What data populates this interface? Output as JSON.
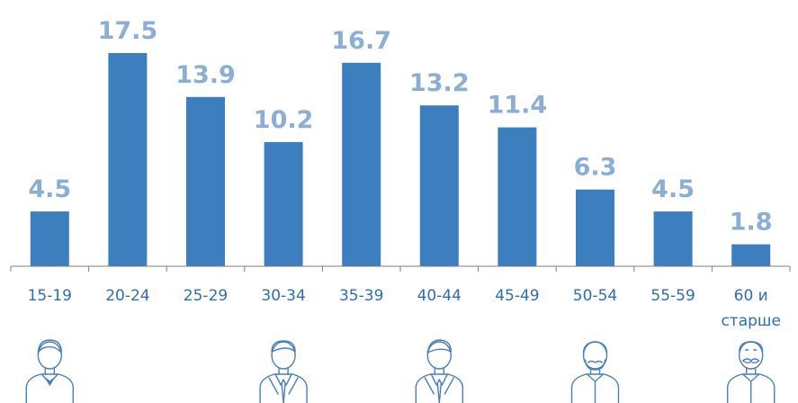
{
  "chart_data": {
    "type": "bar",
    "categories": [
      "15-19",
      "20-24",
      "25-29",
      "30-34",
      "35-39",
      "40-44",
      "45-49",
      "50-54",
      "55-59",
      "60 и старше"
    ],
    "category_lines": [
      [
        "15-19"
      ],
      [
        "20-24"
      ],
      [
        "25-29"
      ],
      [
        "30-34"
      ],
      [
        "35-39"
      ],
      [
        "40-44"
      ],
      [
        "45-49"
      ],
      [
        "50-54"
      ],
      [
        "55-59"
      ],
      [
        "60 и",
        "старше"
      ]
    ],
    "values": [
      4.5,
      17.5,
      13.9,
      10.2,
      16.7,
      13.2,
      11.4,
      6.3,
      4.5,
      1.8
    ],
    "value_labels": [
      "4.5",
      "17.5",
      "13.9",
      "10.2",
      "16.7",
      "13.2",
      "11.4",
      "6.3",
      "4.5",
      "1.8"
    ],
    "title": "",
    "xlabel": "",
    "ylabel": "",
    "ylim": [
      0,
      17.5
    ],
    "grid": false,
    "legend": "none"
  },
  "colors": {
    "bar": "#3d7ebf",
    "value_label": "#8aaed4",
    "tick_label": "#2d6fad",
    "axis": "#7f7f7f",
    "icon_stroke": "#4a7fb8"
  },
  "icons": [
    {
      "name": "young-man-icon",
      "under_category": "15-19"
    },
    {
      "name": "businessman-icon",
      "under_category": "30-34"
    },
    {
      "name": "man-in-suit-icon",
      "under_category": "40-44"
    },
    {
      "name": "mustached-man-icon",
      "under_category": "50-54"
    },
    {
      "name": "elderly-man-icon",
      "under_category": "60 и старше"
    }
  ]
}
